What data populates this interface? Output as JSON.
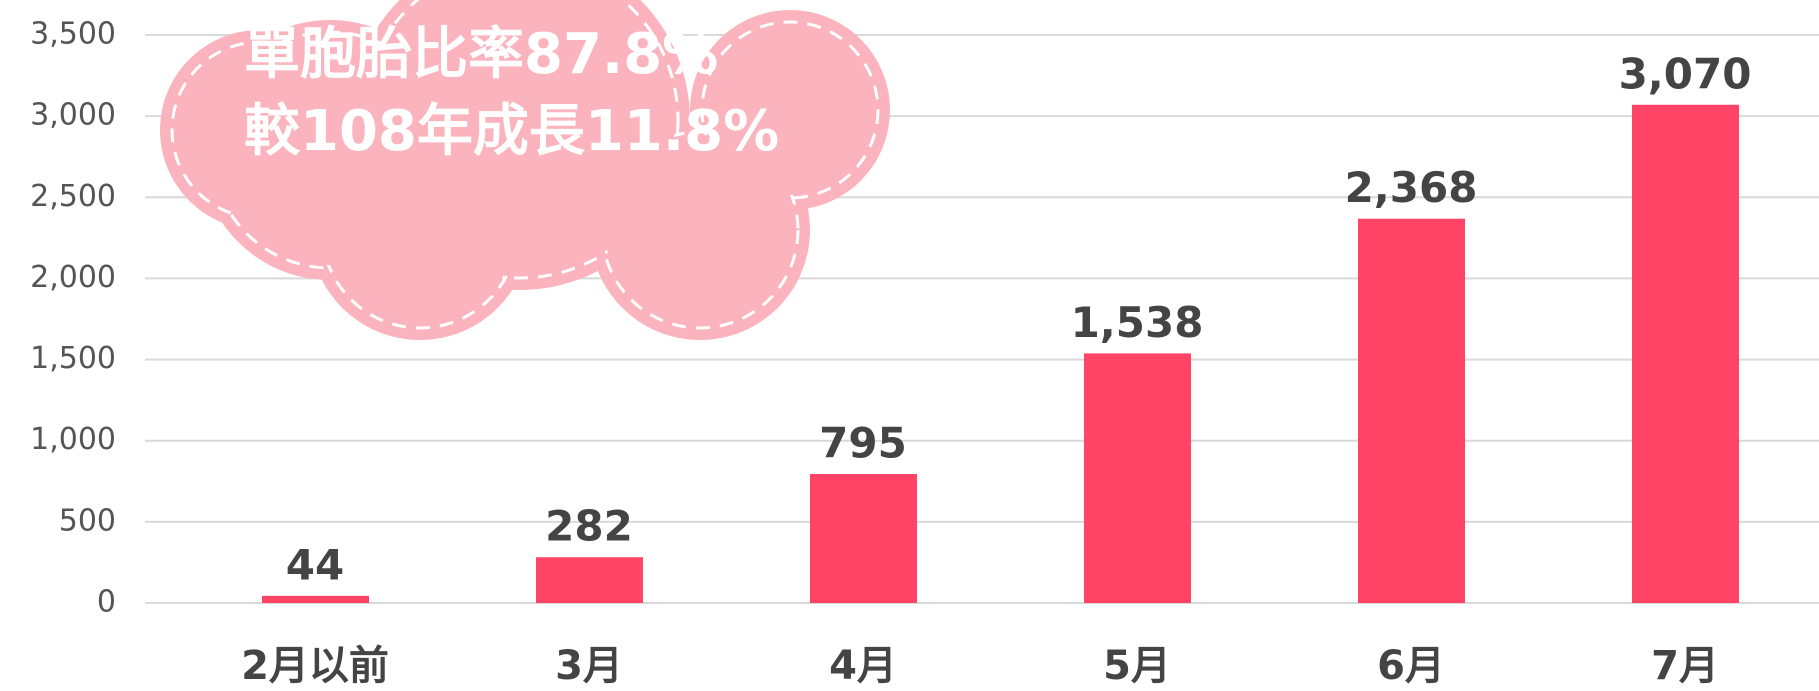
{
  "chart_data": {
    "type": "bar",
    "annotations": [
      "單胞胎比率87.8%",
      "較108年成長11.8%"
    ],
    "categories": [
      "2月以前",
      "3月",
      "4月",
      "5月",
      "6月",
      "7月"
    ],
    "values": [
      44,
      282,
      795,
      1538,
      2368,
      3070
    ],
    "value_labels": [
      "44",
      "282",
      "795",
      "1,538",
      "2,368",
      "3,070"
    ],
    "color": "#ff4466",
    "ylim": [
      0,
      3500
    ],
    "yticks": [
      0,
      500,
      {
        "value": 1000,
        "label": "1,000"
      },
      {
        "value": 1500,
        "label": "1,500"
      },
      {
        "value": 2000,
        "label": "2,000"
      },
      {
        "value": 2500,
        "label": "2,500"
      },
      {
        "value": 3000,
        "label": "3,000"
      },
      {
        "value": 3500,
        "label": "3,500"
      }
    ],
    "grid": true
  }
}
